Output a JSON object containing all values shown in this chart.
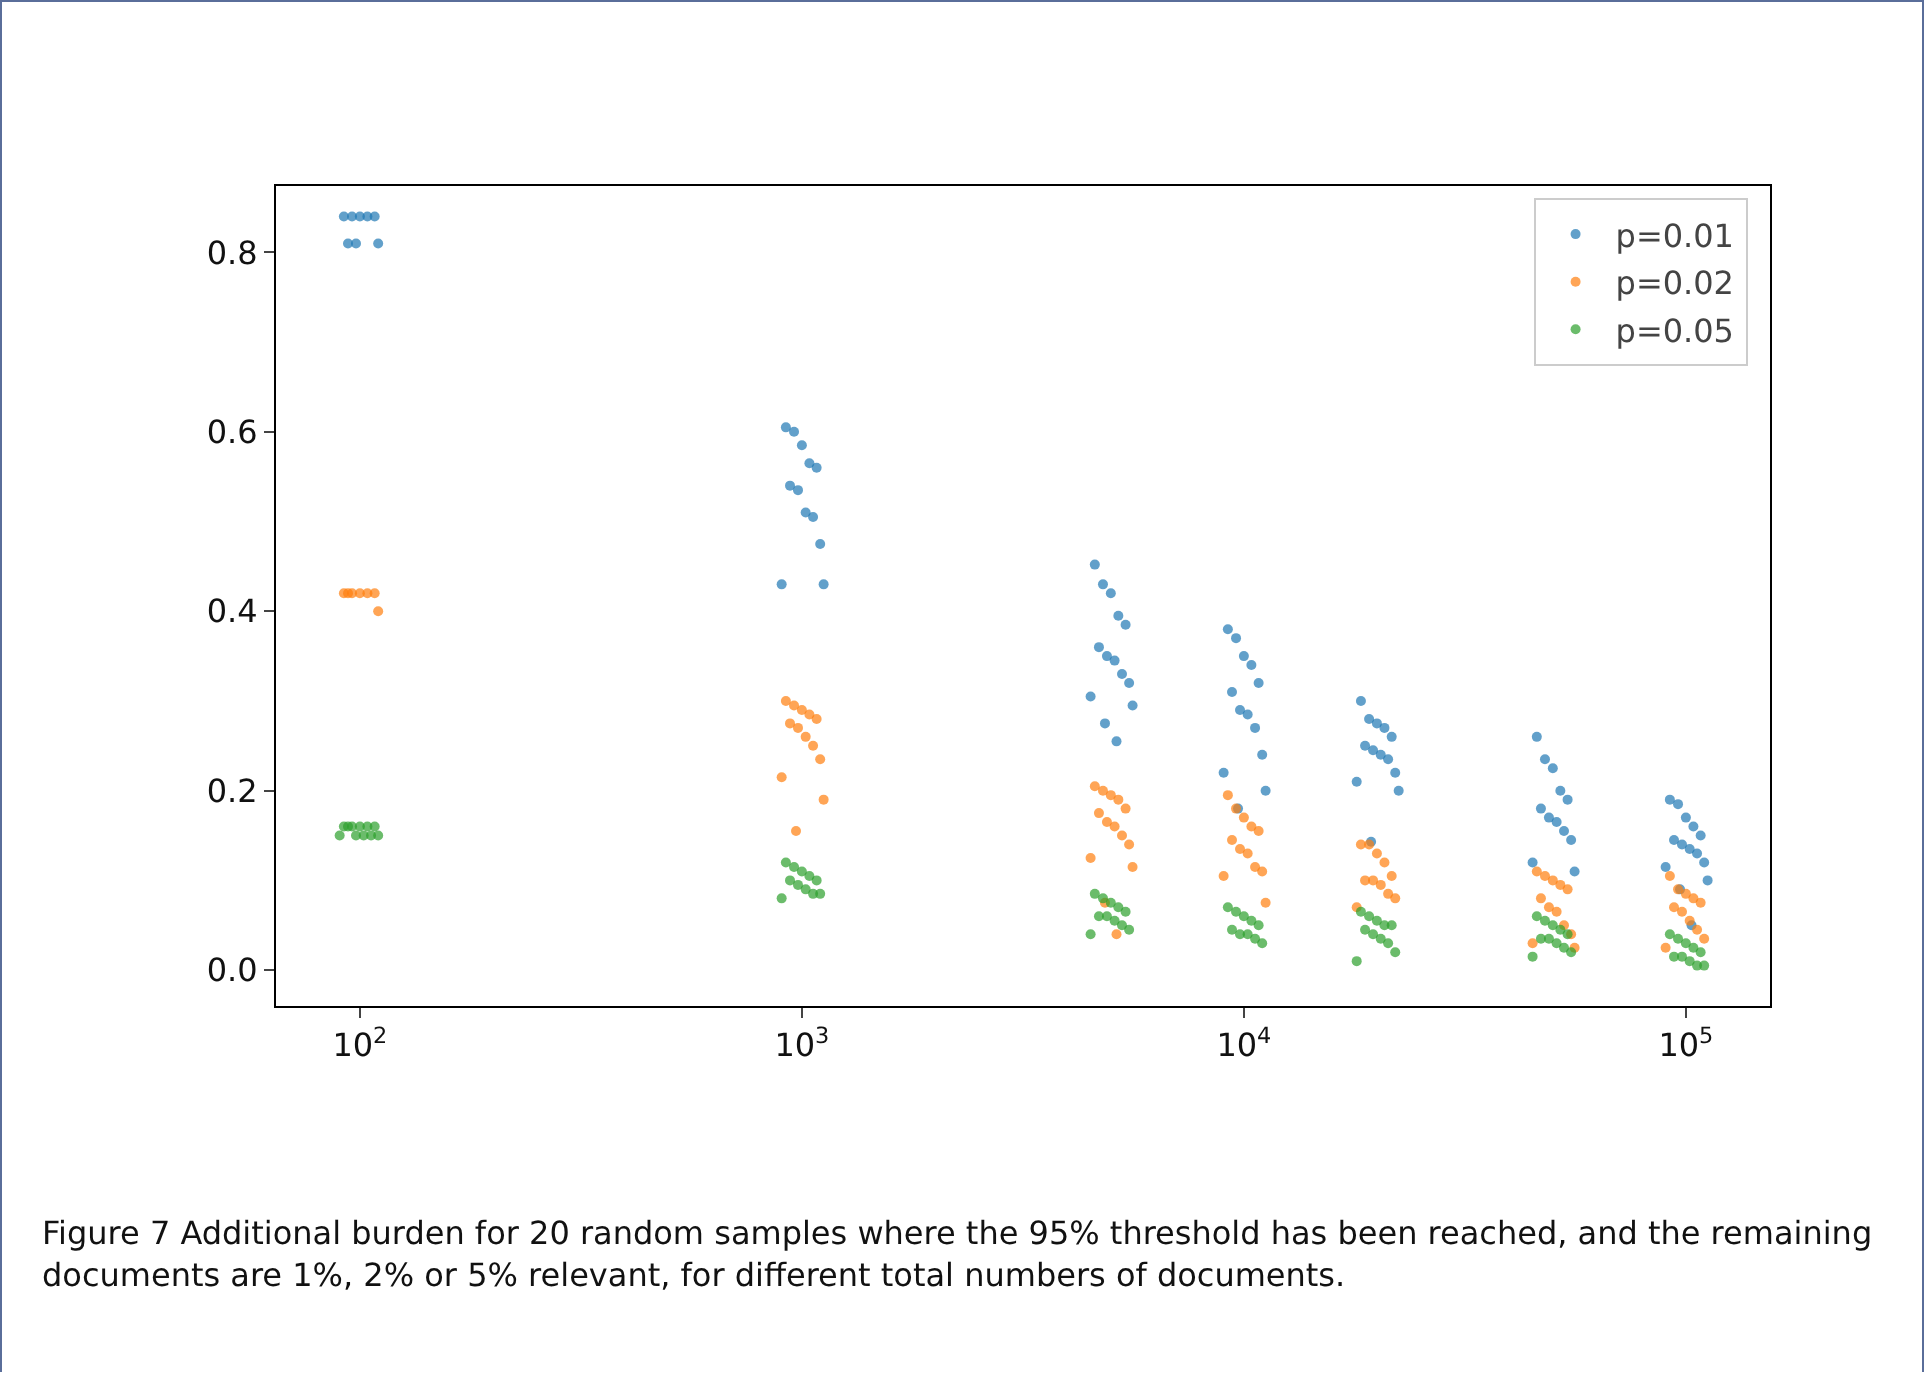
{
  "chart_data": {
    "type": "scatter",
    "log": "x",
    "grid": false,
    "legend": "top right",
    "marker": "circle",
    "xlim": [
      64.6,
      155000
    ],
    "ylim": [
      -0.04,
      0.874
    ],
    "xticks": [
      {
        "value": 100,
        "label": "10$^{2}$"
      },
      {
        "value": 1000,
        "label": "10$^{3}$"
      },
      {
        "value": 10000,
        "label": "10$^{4}$"
      },
      {
        "value": 100000,
        "label": "10$^{5}$"
      }
    ],
    "yticks": [
      {
        "value": 0,
        "label": "0.0"
      },
      0.2,
      0.4,
      0.6,
      0.8
    ],
    "annotations": [
      "Figure 7 Additional burden for 20 random samples where the 95% threshold has been reached, and the remaining documents are 1%, 2% or 5% relevant, for different total numbers of documents."
    ],
    "series": [
      {
        "name": "p=0.01",
        "color": "#1f77b4",
        "x": [
          92,
          96,
          100,
          104,
          108,
          94,
          98,
          110,
          920,
          960,
          1000,
          1040,
          1080,
          940,
          980,
          1020,
          1060,
          1100,
          900,
          1120,
          4600,
          4800,
          5000,
          5200,
          5400,
          4700,
          4900,
          5100,
          5300,
          5500,
          4500,
          5600,
          4850,
          5150,
          9200,
          9600,
          10000,
          10400,
          10800,
          9400,
          9800,
          10200,
          10600,
          11000,
          9000,
          11200,
          9700,
          18400,
          19200,
          20000,
          20800,
          21600,
          18800,
          19600,
          20400,
          21200,
          22000,
          18000,
          22400,
          19400,
          46000,
          48000,
          50000,
          52000,
          54000,
          47000,
          49000,
          51000,
          53000,
          55000,
          45000,
          56000,
          92000,
          96000,
          100000,
          104000,
          108000,
          94000,
          98000,
          102000,
          106000,
          110000,
          90000,
          112000,
          97000,
          103000
        ],
        "values": [
          0.84,
          0.84,
          0.84,
          0.84,
          0.84,
          0.81,
          0.81,
          0.81,
          0.605,
          0.6,
          0.585,
          0.565,
          0.56,
          0.54,
          0.535,
          0.51,
          0.505,
          0.475,
          0.43,
          0.43,
          0.452,
          0.43,
          0.42,
          0.395,
          0.385,
          0.36,
          0.35,
          0.345,
          0.33,
          0.32,
          0.305,
          0.295,
          0.275,
          0.255,
          0.38,
          0.37,
          0.35,
          0.34,
          0.32,
          0.31,
          0.29,
          0.285,
          0.27,
          0.24,
          0.22,
          0.2,
          0.18,
          0.3,
          0.28,
          0.275,
          0.27,
          0.26,
          0.25,
          0.245,
          0.24,
          0.235,
          0.22,
          0.21,
          0.2,
          0.143,
          0.26,
          0.235,
          0.225,
          0.2,
          0.19,
          0.18,
          0.17,
          0.165,
          0.155,
          0.145,
          0.12,
          0.11,
          0.19,
          0.185,
          0.17,
          0.16,
          0.15,
          0.145,
          0.14,
          0.135,
          0.13,
          0.12,
          0.115,
          0.1,
          0.09,
          0.05
        ]
      },
      {
        "name": "p=0.02",
        "color": "#ff7f0e",
        "x": [
          92,
          96,
          100,
          104,
          108,
          94,
          110,
          920,
          960,
          1000,
          1040,
          1080,
          940,
          980,
          1020,
          1060,
          1100,
          900,
          1120,
          970,
          4600,
          4800,
          5000,
          5200,
          5400,
          4700,
          4900,
          5100,
          5300,
          5500,
          4500,
          5600,
          4850,
          5150,
          9200,
          9600,
          10000,
          10400,
          10800,
          9400,
          9800,
          10200,
          10600,
          11000,
          9000,
          11200,
          18400,
          19200,
          20000,
          20800,
          21600,
          18800,
          19600,
          20400,
          21200,
          22000,
          18000,
          46000,
          48000,
          50000,
          52000,
          54000,
          47000,
          49000,
          51000,
          53000,
          55000,
          45000,
          56000,
          92000,
          96000,
          100000,
          104000,
          108000,
          94000,
          98000,
          102000,
          106000,
          110000,
          90000
        ],
        "values": [
          0.42,
          0.42,
          0.42,
          0.42,
          0.42,
          0.42,
          0.4,
          0.3,
          0.295,
          0.29,
          0.285,
          0.28,
          0.275,
          0.27,
          0.26,
          0.25,
          0.235,
          0.215,
          0.19,
          0.155,
          0.205,
          0.2,
          0.195,
          0.19,
          0.18,
          0.175,
          0.165,
          0.16,
          0.15,
          0.14,
          0.125,
          0.115,
          0.075,
          0.04,
          0.195,
          0.18,
          0.17,
          0.16,
          0.155,
          0.145,
          0.135,
          0.13,
          0.115,
          0.11,
          0.105,
          0.075,
          0.14,
          0.14,
          0.13,
          0.12,
          0.105,
          0.1,
          0.1,
          0.095,
          0.085,
          0.08,
          0.07,
          0.11,
          0.105,
          0.1,
          0.095,
          0.09,
          0.08,
          0.07,
          0.065,
          0.05,
          0.04,
          0.03,
          0.025,
          0.105,
          0.09,
          0.085,
          0.08,
          0.075,
          0.07,
          0.065,
          0.055,
          0.045,
          0.035,
          0.025
        ]
      },
      {
        "name": "p=0.05",
        "color": "#2ca02c",
        "x": [
          92,
          96,
          100,
          104,
          108,
          94,
          98,
          102,
          106,
          110,
          90,
          920,
          960,
          1000,
          1040,
          1080,
          940,
          980,
          1020,
          1060,
          1100,
          900,
          4600,
          4800,
          5000,
          5200,
          5400,
          4700,
          4900,
          5100,
          5300,
          5500,
          4500,
          9200,
          9600,
          10000,
          10400,
          10800,
          9400,
          9800,
          10200,
          10600,
          11000,
          18400,
          19200,
          20000,
          20800,
          21600,
          18800,
          19600,
          20400,
          21200,
          22000,
          18000,
          46000,
          48000,
          50000,
          52000,
          54000,
          47000,
          49000,
          51000,
          53000,
          55000,
          45000,
          92000,
          96000,
          100000,
          104000,
          108000,
          94000,
          98000,
          102000,
          106000,
          110000
        ],
        "values": [
          0.16,
          0.16,
          0.16,
          0.16,
          0.16,
          0.16,
          0.15,
          0.15,
          0.15,
          0.15,
          0.15,
          0.12,
          0.115,
          0.11,
          0.105,
          0.1,
          0.1,
          0.095,
          0.09,
          0.085,
          0.085,
          0.08,
          0.085,
          0.08,
          0.075,
          0.07,
          0.065,
          0.06,
          0.06,
          0.055,
          0.05,
          0.045,
          0.04,
          0.07,
          0.065,
          0.06,
          0.055,
          0.05,
          0.045,
          0.04,
          0.04,
          0.035,
          0.03,
          0.065,
          0.06,
          0.055,
          0.05,
          0.05,
          0.045,
          0.04,
          0.035,
          0.03,
          0.02,
          0.01,
          0.06,
          0.055,
          0.05,
          0.045,
          0.04,
          0.035,
          0.035,
          0.03,
          0.025,
          0.02,
          0.015,
          0.04,
          0.035,
          0.03,
          0.025,
          0.02,
          0.015,
          0.015,
          0.01,
          0.005,
          0.005
        ]
      }
    ]
  }
}
